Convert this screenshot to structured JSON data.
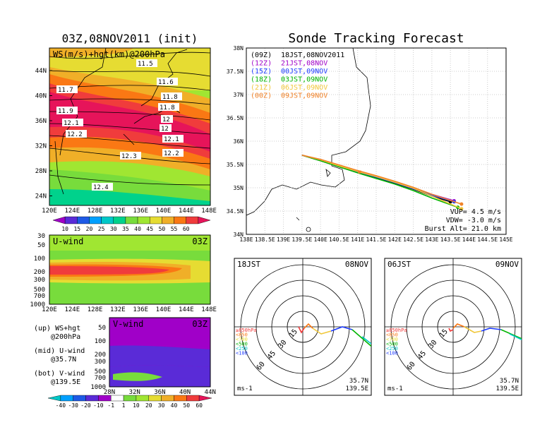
{
  "title_main": "Sonde Tracking Forecast",
  "init_title": "03Z,08NOV2011 (init)",
  "map_panel": {
    "label": "WS(m/s)+hgt(km)@200hPa",
    "contour_labels": [
      "11.5",
      "11.6",
      "11.7",
      "11.8",
      "11.8",
      "11.9",
      "12",
      "12",
      "12.1",
      "12.1",
      "12.2",
      "12.2",
      "12.3",
      "12.4"
    ],
    "lat_ticks": [
      "44N",
      "40N",
      "36N",
      "32N",
      "28N",
      "24N"
    ],
    "lon_ticks": [
      "120E",
      "124E",
      "128E",
      "132E",
      "136E",
      "140E",
      "144E",
      "148E"
    ],
    "colorbar": [
      "10",
      "15",
      "20",
      "25",
      "30",
      "35",
      "40",
      "45",
      "50",
      "55",
      "60"
    ],
    "colors": [
      "#a000c8",
      "#5a2bd7",
      "#1e5ae6",
      "#00a0ff",
      "#00c8c8",
      "#00d28c",
      "#78dc3c",
      "#a0e632",
      "#e6dc32",
      "#f0af28",
      "#fa7814",
      "#f03c3c",
      "#e6145a"
    ]
  },
  "u_panel": {
    "label": "U-wind",
    "time": "03Z",
    "p_ticks": [
      "30",
      "50",
      "100",
      "200",
      "300",
      "500",
      "700",
      "1000"
    ],
    "lon_ticks": [
      "120E",
      "124E",
      "128E",
      "132E",
      "136E",
      "140E",
      "144E",
      "148E"
    ]
  },
  "v_panel": {
    "label": "V-wind",
    "time": "03Z",
    "p_ticks": [
      "50",
      "100",
      "200",
      "300",
      "500",
      "700",
      "1000"
    ],
    "lat_ticks": [
      "28N",
      "32N",
      "36N",
      "40N",
      "44N"
    ],
    "colorbar": [
      "-40",
      "-30",
      "-20",
      "-10",
      "-1",
      "1",
      "10",
      "20",
      "30",
      "40",
      "50",
      "60"
    ]
  },
  "legend_notes": [
    {
      "a": "(up) WS+hgt",
      "b": "@200hPa"
    },
    {
      "a": "(mid) U-wind",
      "b": "@35.7N"
    },
    {
      "a": "(bot) V-wind",
      "b": "@139.5E"
    }
  ],
  "track_panel": {
    "lat_ticks": [
      "38N",
      "37.5N",
      "37N",
      "36.5N",
      "36N",
      "35.5N",
      "35N",
      "34.5N",
      "34N"
    ],
    "lon_ticks": [
      "138E",
      "138.5E",
      "139E",
      "139.5E",
      "140E",
      "140.5E",
      "141E",
      "141.5E",
      "142E",
      "142.5E",
      "143E",
      "143.5E",
      "144E",
      "144.5E",
      "145E"
    ],
    "legend": [
      {
        "code": "(09Z)",
        "text": "18JST,08NOV2011",
        "color": "#000000"
      },
      {
        "code": "(12Z)",
        "text": "21JST,08NOV",
        "color": "#a000c8"
      },
      {
        "code": "(15Z)",
        "text": "00JST,09NOV",
        "color": "#1e3cff"
      },
      {
        "code": "(18Z)",
        "text": "03JST,09NOV",
        "color": "#00b400"
      },
      {
        "code": "(21Z)",
        "text": "06JST,09NOV",
        "color": "#f0c83c"
      },
      {
        "code": "(00Z)",
        "text": "09JST,09NOV",
        "color": "#f08228"
      }
    ],
    "vup": "VUP= 4.5 m/s",
    "vdw": "VDW= -3.0 m/s",
    "burst": "Burst Alt= 21.0 km"
  },
  "hodo_left": {
    "time": "18JST",
    "date": "08NOV",
    "lat": "35.7N",
    "lon": "139.5E",
    "unit": "ms-1",
    "rings": [
      "15",
      "30",
      "45",
      "60"
    ],
    "plevels": [
      "≥850hPa",
      "<850",
      "<700",
      "<500",
      "<250",
      "<100"
    ]
  },
  "hodo_right": {
    "time": "06JST",
    "date": "09NOV",
    "lat": "35.7N",
    "lon": "139.5E",
    "unit": "ms-1",
    "rings": [
      "15",
      "30",
      "45",
      "60"
    ],
    "plevels": [
      "≥850hPa",
      "<850",
      "<700",
      "<500",
      "<250",
      "<100"
    ]
  },
  "chart_data": {
    "type": "line",
    "title": "Sonde Tracking Forecast",
    "xlim": [
      138,
      145
    ],
    "ylim": [
      34,
      38
    ],
    "series": [
      {
        "name": "18JST,08NOV2011",
        "x": [
          139.5,
          140.0,
          140.5,
          141.0,
          141.5,
          142.0,
          142.5,
          143.0,
          143.5
        ],
        "y": [
          35.7,
          35.58,
          35.45,
          35.33,
          35.22,
          35.1,
          34.97,
          34.82,
          34.7
        ]
      },
      {
        "name": "21JST,08NOV",
        "x": [
          139.5,
          140.0,
          140.5,
          141.0,
          141.5,
          142.0,
          142.5,
          143.0,
          143.6
        ],
        "y": [
          35.7,
          35.6,
          35.48,
          35.36,
          35.25,
          35.12,
          35.0,
          34.86,
          34.72
        ]
      },
      {
        "name": "00JST,09NOV",
        "x": [
          139.5,
          140.0,
          140.5,
          141.0,
          141.5,
          142.0,
          142.5,
          143.0,
          143.6
        ],
        "y": [
          35.7,
          35.59,
          35.46,
          35.34,
          35.23,
          35.11,
          34.98,
          34.84,
          34.7
        ]
      },
      {
        "name": "03JST,09NOV",
        "x": [
          139.5,
          140.0,
          140.5,
          141.0,
          141.5,
          142.0,
          142.5,
          143.0,
          143.7
        ],
        "y": [
          35.7,
          35.58,
          35.45,
          35.32,
          35.2,
          35.08,
          34.94,
          34.78,
          34.58
        ]
      },
      {
        "name": "06JST,09NOV",
        "x": [
          139.5,
          140.0,
          140.5,
          141.0,
          141.5,
          142.0,
          142.5,
          143.0,
          143.8
        ],
        "y": [
          35.7,
          35.6,
          35.47,
          35.35,
          35.24,
          35.12,
          34.99,
          34.82,
          34.55
        ]
      },
      {
        "name": "09JST,09NOV",
        "x": [
          139.5,
          140.0,
          140.5,
          141.0,
          141.5,
          142.0,
          142.5,
          143.0,
          143.8
        ],
        "y": [
          35.7,
          35.61,
          35.49,
          35.37,
          35.26,
          35.14,
          35.01,
          34.86,
          34.65
        ]
      }
    ]
  }
}
